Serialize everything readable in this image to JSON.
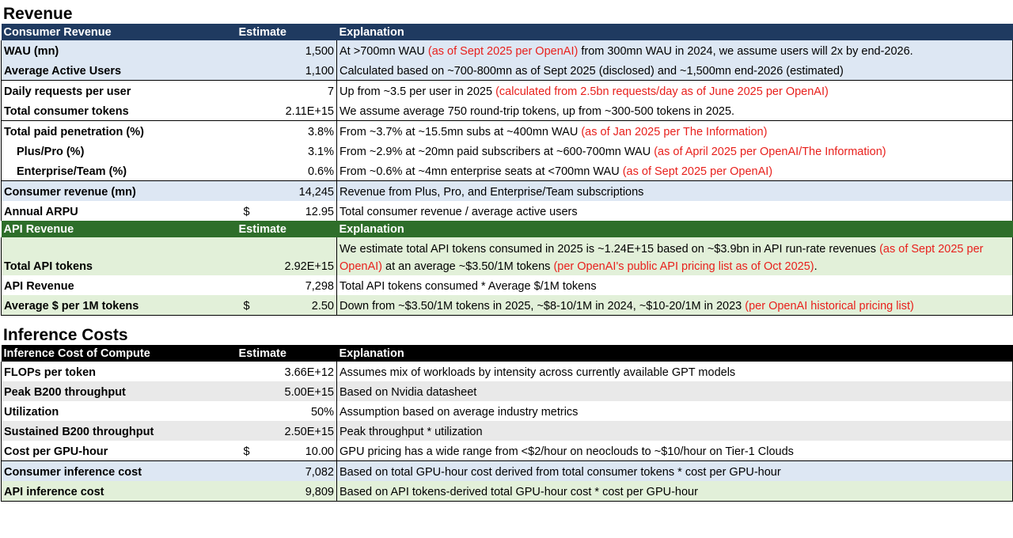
{
  "revenue": {
    "title": "Revenue",
    "consumer_header": {
      "label": "Consumer Revenue",
      "estimate": "Estimate",
      "explanation": "Explanation"
    },
    "consumer_rows": [
      {
        "label": "WAU (mn)",
        "value": "1,500",
        "exp": "At >700mn WAU ",
        "exp_red": "(as of Sept 2025 per OpenAI)",
        "exp_after": " from 300mn WAU in 2024, we assume users will 2x by end-2026."
      },
      {
        "label": "Average Active Users",
        "value": "1,100",
        "exp": "Calculated based on ~700-800mn as of Sept 2025 (disclosed) and ~1,500mn end-2026 (estimated)"
      },
      {
        "label": "Daily requests per user",
        "value": "7",
        "exp": "Up from ~3.5 per user in 2025  ",
        "exp_red": "(calculated from 2.5bn requests/day as of June 2025 per OpenAI)"
      },
      {
        "label": "Total consumer tokens",
        "value": "2.11E+15",
        "exp": "We assume average 750 round-trip tokens, up from ~300-500 tokens in 2025."
      },
      {
        "label": "Total paid penetration (%)",
        "value": "3.8%",
        "exp": "From ~3.7% at ~15.5mn subs at ~400mn WAU ",
        "exp_red": "(as of Jan 2025 per The Information)"
      },
      {
        "label": "Plus/Pro (%)",
        "value": "3.1%",
        "exp": "From ~2.9% at ~20mn paid subscribers at ~600-700mn WAU ",
        "exp_red": "(as of April 2025 per OpenAI/The Information)"
      },
      {
        "label": "Enterprise/Team (%)",
        "value": "0.6%",
        "exp": "From ~0.6% at ~4mn enterprise seats at <700mn WAU ",
        "exp_red": "(as of Sept 2025 per OpenAI)"
      },
      {
        "label": "Consumer revenue (mn)",
        "value": "14,245",
        "exp": "Revenue from Plus, Pro, and Enterprise/Team subscriptions"
      },
      {
        "label": "Annual ARPU",
        "currency": "$",
        "value": "12.95",
        "exp": "Total consumer revenue / average active users"
      }
    ],
    "api_header": {
      "label": "API Revenue",
      "estimate": "Estimate",
      "explanation": "Explanation"
    },
    "api_rows": [
      {
        "label": "Total API tokens",
        "value": "2.92E+15",
        "exp": "We estimate total API tokens consumed in 2025 is ~1.24E+15 based on ~$3.9bn in API run-rate revenues ",
        "exp_red": "(as of Sept 2025 per OpenAI)",
        "exp_after": " at an average ~$3.50/1M tokens ",
        "exp_red2": "(per OpenAI's public API pricing list as of Oct 2025)",
        "exp_end": "."
      },
      {
        "label": "API Revenue",
        "value": "7,298",
        "exp": "Total API tokens consumed * Average $/1M tokens"
      },
      {
        "label": "Average $ per 1M tokens",
        "currency": "$",
        "value": "2.50",
        "exp": "Down from ~$3.50/1M tokens in 2025, ~$8-10/1M in 2024, ~$10-20/1M in 2023 ",
        "exp_red": "(per OpenAI historical pricing list)"
      }
    ]
  },
  "inference": {
    "title": "Inference Costs",
    "header": {
      "label": "Inference Cost of Compute",
      "estimate": "Estimate",
      "explanation": "Explanation"
    },
    "rows": [
      {
        "label": "FLOPs per token",
        "value": "3.66E+12",
        "exp": "Assumes mix of workloads by intensity across currently available GPT models"
      },
      {
        "label": "Peak B200 throughput",
        "value": "5.00E+15",
        "exp": "Based on Nvidia datasheet"
      },
      {
        "label": "Utilization",
        "value": "50%",
        "exp": "Assumption based on average industry metrics"
      },
      {
        "label": "Sustained B200 throughput",
        "value": "2.50E+15",
        "exp": "Peak throughput * utilization"
      },
      {
        "label": "Cost per GPU-hour",
        "currency": "$",
        "value": "10.00",
        "exp": "GPU pricing has a wide range from <$2/hour on neoclouds to ~$10/hour on Tier-1 Clouds"
      },
      {
        "label": "Consumer inference cost",
        "value": "7,082",
        "exp": "Based on total GPU-hour cost derived from total consumer tokens * cost per GPU-hour"
      },
      {
        "label": "API inference cost",
        "value": "9,809",
        "exp": "Based on API tokens-derived total GPU-hour cost * cost per GPU-hour"
      }
    ]
  }
}
